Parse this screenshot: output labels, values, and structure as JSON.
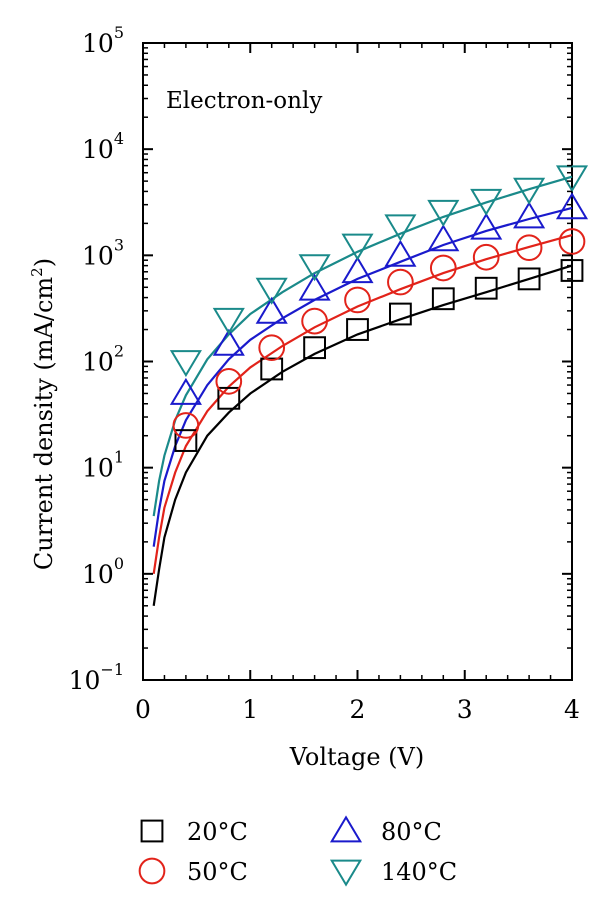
{
  "chart_data": {
    "type": "scatter",
    "title": "",
    "annotation": "Electron-only",
    "xlabel": "Voltage (V)",
    "ylabel": "Current density (mA/cm",
    "ylabel_sup": "2",
    "ylabel_end": ")",
    "xlim": [
      0,
      4
    ],
    "ylim": [
      0.1,
      100000
    ],
    "yscale": "log",
    "xticks": [
      0,
      1,
      2,
      3,
      4
    ],
    "xtick_labels": [
      "0",
      "1",
      "2",
      "3",
      "4"
    ],
    "yticks": [
      0.1,
      1,
      10,
      100,
      1000,
      10000,
      100000
    ],
    "ytick_base": "10",
    "ytick_exponents": [
      "−1",
      "0",
      "1",
      "2",
      "3",
      "4",
      "5"
    ],
    "grid": false,
    "legend_position": "bottom",
    "series": [
      {
        "name": "20°C",
        "marker": "square",
        "color": "#000000",
        "x": [
          0.4,
          0.8,
          1.2,
          1.6,
          2.0,
          2.4,
          2.8,
          3.2,
          3.6,
          4.0
        ],
        "y": [
          18,
          45,
          85,
          135,
          200,
          280,
          390,
          490,
          600,
          720
        ],
        "fit_x": [
          0.1,
          0.15,
          0.2,
          0.3,
          0.4,
          0.6,
          0.8,
          1.0,
          1.3,
          1.6,
          2.0,
          2.4,
          2.8,
          3.2,
          3.6,
          4.0
        ],
        "fit_y": [
          0.5,
          1.1,
          2.2,
          5.0,
          9.0,
          20,
          33,
          50,
          80,
          118,
          180,
          250,
          340,
          450,
          600,
          800
        ]
      },
      {
        "name": "50°C",
        "marker": "circle",
        "color": "#e2231a",
        "x": [
          0.4,
          0.8,
          1.2,
          1.6,
          2.0,
          2.4,
          2.8,
          3.2,
          3.6,
          4.0
        ],
        "y": [
          25,
          65,
          135,
          240,
          380,
          560,
          760,
          960,
          1180,
          1350
        ],
        "fit_x": [
          0.1,
          0.15,
          0.2,
          0.3,
          0.4,
          0.6,
          0.8,
          1.0,
          1.3,
          1.6,
          2.0,
          2.4,
          2.8,
          3.2,
          3.6,
          4.0
        ],
        "fit_y": [
          1.0,
          2.2,
          4.2,
          9.0,
          16,
          34,
          58,
          88,
          140,
          210,
          330,
          480,
          680,
          920,
          1200,
          1550
        ]
      },
      {
        "name": "80°C",
        "marker": "triangle-up",
        "color": "#1a1acc",
        "x": [
          0.4,
          0.8,
          1.2,
          1.6,
          2.0,
          2.4,
          2.8,
          3.2,
          3.6,
          4.0
        ],
        "y": [
          50,
          145,
          290,
          480,
          700,
          1000,
          1400,
          1800,
          2300,
          2800
        ],
        "fit_x": [
          0.1,
          0.15,
          0.2,
          0.3,
          0.4,
          0.6,
          0.8,
          1.0,
          1.3,
          1.6,
          2.0,
          2.4,
          2.8,
          3.2,
          3.6,
          4.0
        ],
        "fit_y": [
          1.8,
          4.0,
          7.5,
          16,
          28,
          60,
          105,
          160,
          255,
          380,
          600,
          870,
          1250,
          1700,
          2200,
          2800
        ]
      },
      {
        "name": "140°C",
        "marker": "triangle-down",
        "color": "#1a8a8a",
        "x": [
          0.4,
          0.8,
          1.2,
          1.6,
          2.0,
          2.4,
          2.8,
          3.2,
          3.6,
          4.0
        ],
        "y": [
          100,
          250,
          480,
          800,
          1250,
          1900,
          2600,
          3300,
          4200,
          5500
        ],
        "fit_x": [
          0.1,
          0.15,
          0.2,
          0.3,
          0.4,
          0.6,
          0.8,
          1.0,
          1.3,
          1.6,
          2.0,
          2.4,
          2.8,
          3.2,
          3.6,
          4.0
        ],
        "fit_y": [
          3.5,
          7.5,
          13,
          28,
          48,
          105,
          180,
          280,
          450,
          680,
          1080,
          1600,
          2300,
          3150,
          4200,
          5500
        ]
      }
    ]
  }
}
